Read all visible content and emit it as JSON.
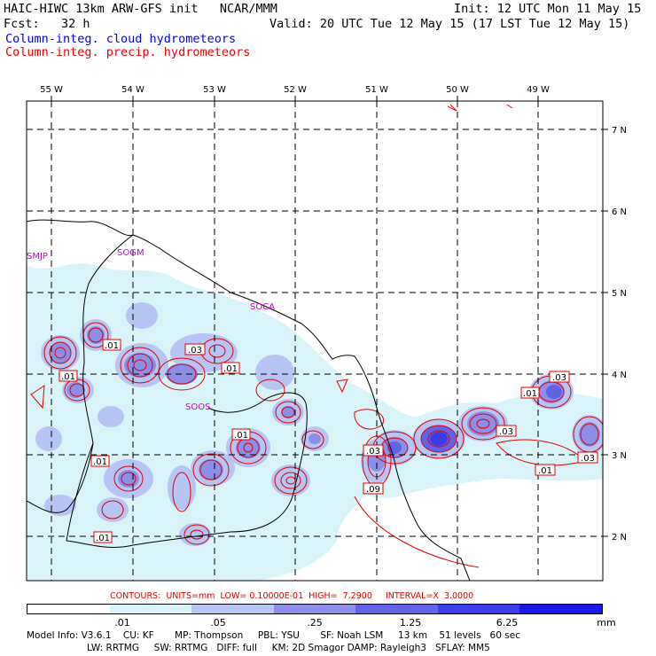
{
  "header": {
    "line1_left": "HAIC-HIWC 13km ARW-GFS init   NCAR/MMM",
    "line1_right": "Init: 12 UTC Mon 11 May 15",
    "line2_left": "Fcst:   32 h",
    "line2_right": "Valid: 20 UTC Tue 12 May 15 (17 LST Tue 12 May 15)",
    "legend_cloud": "Column-integ. cloud hydrometeors",
    "legend_precip": "Column-integ. precip. hydrometeors"
  },
  "map": {
    "lon_labels": [
      "55 W",
      "54 W",
      "53 W",
      "52 W",
      "51 W",
      "50 W",
      "49 W"
    ],
    "lat_labels": [
      "7 N",
      "6 N",
      "5 N",
      "4 N",
      "3 N",
      "2 N"
    ],
    "stations": [
      "SMJP",
      "SOGM",
      "SOCA",
      "SOOS"
    ],
    "contour_labels": [
      ".01",
      ".01",
      ".03",
      ".01",
      ".01",
      ".01",
      ".01",
      ".03",
      ".09",
      ".03",
      ".03",
      ".01",
      ".03",
      ".01",
      ".03"
    ]
  },
  "contour_info": {
    "label": "CONTOURS:  UNITS=mm  LOW= 0.10000E-01  HIGH=  7.2900     INTERVAL=X  3.0000"
  },
  "colorbar": {
    "colors": [
      "#ffffff",
      "#d8f4f8",
      "#b8c4f4",
      "#8c8ee8",
      "#6262e8",
      "#3c3ce8",
      "#1818e8"
    ],
    "ticks": [
      ".01",
      ".05",
      ".25",
      "1.25",
      "6.25"
    ],
    "units": "mm"
  },
  "model_info": {
    "line1": "Model Info: V3.6.1    CU: KF       MP: Thompson     PBL: YSU       SF: Noah LSM     13 km    51 levels   60 sec",
    "line2": "LW: RRTMG     SW: RRTMG   DIFF: full     KM: 2D Smagor DAMP: Rayleigh3   SFLAY: MM5"
  }
}
